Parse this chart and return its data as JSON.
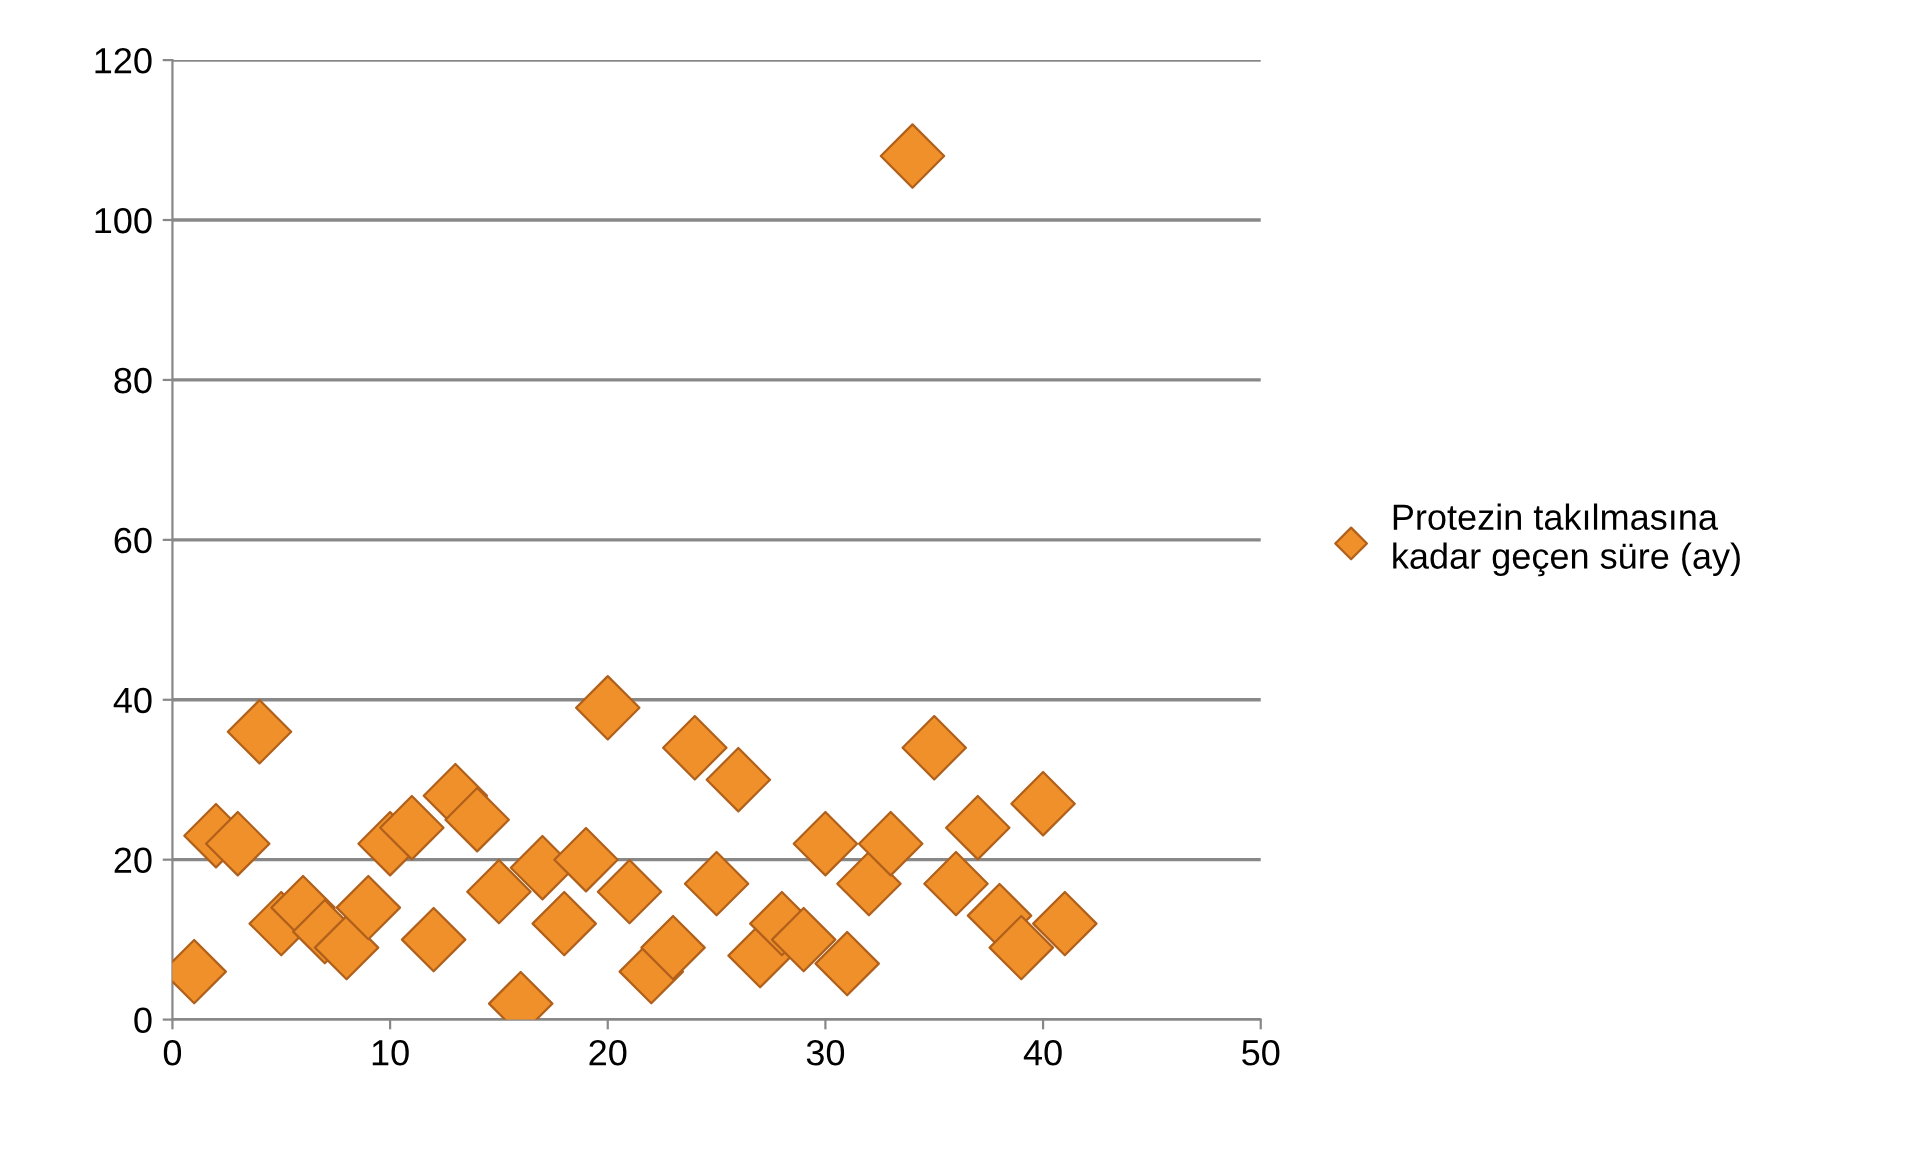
{
  "chart_data": {
    "type": "scatter",
    "x": [
      1,
      2,
      3,
      4,
      5,
      6,
      7,
      8,
      9,
      10,
      11,
      12,
      13,
      14,
      15,
      16,
      17,
      18,
      19,
      20,
      21,
      22,
      23,
      24,
      25,
      26,
      27,
      28,
      29,
      30,
      31,
      32,
      33,
      34,
      35,
      36,
      37,
      38,
      39,
      40,
      41
    ],
    "series": [
      {
        "name": "Protezin takılmasına kadar geçen süre (ay)",
        "color": "#f0902a",
        "values": [
          6,
          23,
          22,
          36,
          12,
          14,
          11,
          9,
          14,
          22,
          24,
          10,
          28,
          25,
          16,
          2,
          19,
          12,
          20,
          39,
          16,
          6,
          9,
          34,
          17,
          30,
          8,
          12,
          10,
          22,
          7,
          17,
          22,
          108,
          34,
          17,
          24,
          13,
          9,
          27,
          12
        ]
      }
    ],
    "xlim": [
      0,
      50
    ],
    "xticks": [
      0,
      10,
      20,
      30,
      40,
      50
    ],
    "ylim": [
      0,
      120
    ],
    "yticks": [
      0,
      20,
      40,
      60,
      80,
      100,
      120
    ],
    "grid": "y",
    "legend": "right",
    "marker": "diamond"
  }
}
